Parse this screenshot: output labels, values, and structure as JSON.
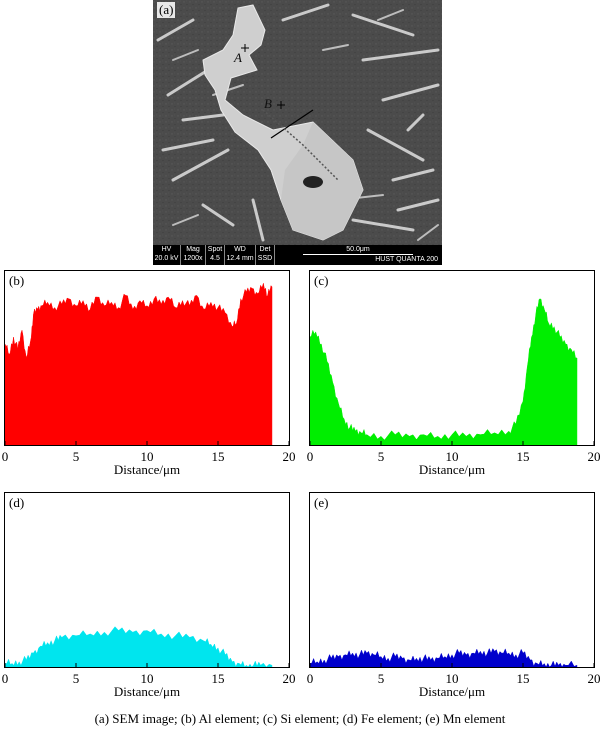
{
  "sem": {
    "panel_label": "(a)",
    "point_a": "A",
    "point_b": "B",
    "databar": {
      "hv_label": "HV",
      "hv_value": "20.0 kV",
      "mag_label": "Mag",
      "mag_value": "1200x",
      "spot_label": "Spot",
      "spot_value": "4.5",
      "wd_label": "WD",
      "wd_value": "12.4 mm",
      "det_label": "Det",
      "det_value": "SSD",
      "scale_text": "50.0μm",
      "instrument": "HUST   QUANTA 200"
    }
  },
  "chart_data": [
    {
      "type": "area",
      "panel_label": "(b)",
      "title": "",
      "xlabel": "Distance/μm",
      "ylabel": "",
      "xlim": [
        0,
        20
      ],
      "xticks": [
        0,
        5,
        10,
        15,
        20
      ],
      "ylim": [
        0,
        1
      ],
      "color": "#ff0000",
      "series": [
        {
          "x": [
            0,
            0.3,
            0.6,
            0.9,
            1.2,
            1.5,
            1.8,
            2.0,
            2.3,
            2.6,
            3.0,
            3.5,
            4.0,
            4.5,
            5.0,
            5.5,
            6.0,
            6.5,
            7.0,
            7.5,
            8.0,
            8.5,
            9.0,
            9.5,
            10.0,
            10.5,
            11.0,
            11.5,
            12.0,
            12.5,
            13.0,
            13.5,
            14.0,
            14.5,
            15.0,
            15.5,
            16.0,
            16.3,
            16.6,
            17.0,
            17.4,
            17.8,
            18.2,
            18.5,
            18.8
          ],
          "values": [
            0.58,
            0.52,
            0.62,
            0.55,
            0.66,
            0.5,
            0.6,
            0.75,
            0.78,
            0.8,
            0.82,
            0.79,
            0.81,
            0.84,
            0.8,
            0.83,
            0.78,
            0.85,
            0.8,
            0.82,
            0.79,
            0.86,
            0.78,
            0.83,
            0.8,
            0.84,
            0.81,
            0.85,
            0.79,
            0.83,
            0.8,
            0.86,
            0.78,
            0.82,
            0.79,
            0.76,
            0.68,
            0.7,
            0.84,
            0.88,
            0.9,
            0.87,
            0.93,
            0.86,
            0.91
          ]
        }
      ]
    },
    {
      "type": "area",
      "panel_label": "(c)",
      "title": "",
      "xlabel": "Distance/μm",
      "ylabel": "",
      "xlim": [
        0,
        20
      ],
      "xticks": [
        0,
        5,
        10,
        15,
        20
      ],
      "ylim": [
        0,
        1
      ],
      "color": "#00ee00",
      "series": [
        {
          "x": [
            0,
            0.4,
            0.8,
            1.2,
            1.6,
            2.0,
            2.4,
            2.8,
            3.2,
            3.6,
            4.0,
            5.0,
            6.0,
            7.0,
            8.0,
            9.0,
            10.0,
            11.0,
            12.0,
            13.0,
            14.0,
            14.5,
            15.0,
            15.3,
            15.6,
            15.9,
            16.2,
            16.5,
            16.8,
            17.2,
            17.6,
            18.0,
            18.4,
            18.8
          ],
          "values": [
            0.62,
            0.65,
            0.58,
            0.48,
            0.36,
            0.24,
            0.15,
            0.1,
            0.08,
            0.07,
            0.06,
            0.05,
            0.06,
            0.05,
            0.06,
            0.05,
            0.06,
            0.05,
            0.06,
            0.07,
            0.08,
            0.12,
            0.25,
            0.45,
            0.62,
            0.75,
            0.84,
            0.78,
            0.7,
            0.68,
            0.62,
            0.58,
            0.55,
            0.5
          ]
        }
      ]
    },
    {
      "type": "area",
      "panel_label": "(d)",
      "title": "",
      "xlabel": "Distance/μm",
      "ylabel": "",
      "xlim": [
        0,
        20
      ],
      "xticks": [
        0,
        5,
        10,
        15,
        20
      ],
      "ylim": [
        0,
        1
      ],
      "color": "#00e5ee",
      "series": [
        {
          "x": [
            0,
            0.5,
            1.0,
            1.5,
            2.0,
            2.5,
            3.0,
            3.5,
            4.0,
            5.0,
            6.0,
            7.0,
            8.0,
            9.0,
            10.0,
            11.0,
            12.0,
            13.0,
            14.0,
            14.5,
            15.0,
            15.5,
            16.0,
            16.5,
            17.0,
            17.5,
            18.0,
            18.8
          ],
          "values": [
            0.02,
            0.02,
            0.03,
            0.04,
            0.08,
            0.12,
            0.14,
            0.15,
            0.17,
            0.18,
            0.19,
            0.2,
            0.21,
            0.2,
            0.21,
            0.19,
            0.18,
            0.17,
            0.15,
            0.13,
            0.11,
            0.07,
            0.03,
            0.02,
            0.01,
            0.01,
            0.01,
            0.01
          ]
        }
      ]
    },
    {
      "type": "area",
      "panel_label": "(e)",
      "title": "",
      "xlabel": "Distance/μm",
      "ylabel": "",
      "xlim": [
        0,
        20
      ],
      "xticks": [
        0,
        5,
        10,
        15,
        20
      ],
      "ylim": [
        0,
        1
      ],
      "color": "#0000cc",
      "series": [
        {
          "x": [
            0,
            0.5,
            1.0,
            1.5,
            2.0,
            2.5,
            3.0,
            3.5,
            4.0,
            4.5,
            5.0,
            5.5,
            6.0,
            6.5,
            7.0,
            7.5,
            8.0,
            8.5,
            9.0,
            9.5,
            10.0,
            10.5,
            11.0,
            11.5,
            12.0,
            12.5,
            13.0,
            13.5,
            14.0,
            14.5,
            15.0,
            15.5,
            16.0,
            16.5,
            17.0,
            17.5,
            18.0,
            18.8
          ],
          "values": [
            0.02,
            0.03,
            0.04,
            0.05,
            0.06,
            0.07,
            0.08,
            0.07,
            0.08,
            0.07,
            0.06,
            0.05,
            0.06,
            0.05,
            0.04,
            0.05,
            0.05,
            0.04,
            0.05,
            0.06,
            0.07,
            0.08,
            0.07,
            0.08,
            0.09,
            0.08,
            0.09,
            0.08,
            0.08,
            0.07,
            0.08,
            0.04,
            0.02,
            0.02,
            0.01,
            0.01,
            0.01,
            0.01
          ]
        }
      ]
    }
  ],
  "caption": "(a) SEM image; (b) Al element; (c) Si element; (d) Fe element; (e) Mn element"
}
